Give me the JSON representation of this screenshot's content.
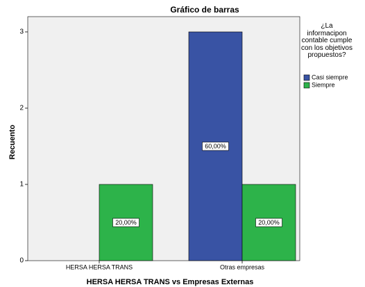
{
  "chart_data": {
    "type": "bar",
    "title": "Gráfico de barras",
    "x_label": "HERSA HERSA TRANS vs Empresas Externas",
    "y_label": "Recuento",
    "legend_title": "¿La informacipon contable cumple con los objetivos propuestos?",
    "legend": "right",
    "categories": [
      "HERSA HERSA TRANS",
      "Otras empresas"
    ],
    "series": [
      {
        "name": "Casi siempre",
        "color": "#3953a4",
        "values": [
          0,
          3
        ],
        "percentages": [
          null,
          60
        ],
        "percentage_labels": [
          null,
          "60,00%"
        ]
      },
      {
        "name": "Siempre",
        "color": "#2db34a",
        "values": [
          1,
          1
        ],
        "percentages": [
          20,
          20
        ],
        "percentage_labels": [
          "20,00%",
          "20,00%"
        ]
      }
    ],
    "ylim": [
      0,
      3.2
    ],
    "yticks": [
      0,
      1,
      2,
      3
    ]
  }
}
